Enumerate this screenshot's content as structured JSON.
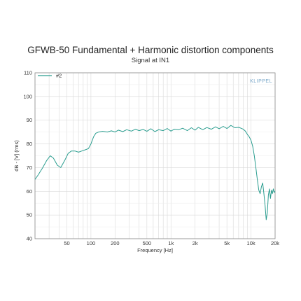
{
  "chart_data": {
    "type": "line",
    "title": "GFWB-50 Fundamental + Harmonic distortion components",
    "subtitle": "Signal at IN1",
    "xlabel": "Frequency [Hz]",
    "ylabel": "dB - [V] (rms)",
    "xscale": "log",
    "xlim": [
      20,
      20000
    ],
    "ylim": [
      40,
      110
    ],
    "x_tick_labels": [
      "50",
      "100",
      "200",
      "500",
      "1k",
      "2k",
      "5k",
      "10k",
      "20k"
    ],
    "x_ticks": [
      50,
      100,
      200,
      500,
      1000,
      2000,
      5000,
      10000,
      20000
    ],
    "y_ticks": [
      40,
      50,
      60,
      70,
      80,
      90,
      100,
      110
    ],
    "grid": true,
    "legend_position": "top-left",
    "watermark": "KLIPPEL",
    "series": [
      {
        "name": "#2",
        "color": "#2a9d8f",
        "x": [
          20,
          22,
          25,
          28,
          31,
          34,
          38,
          42,
          47,
          52,
          57,
          63,
          70,
          77,
          85,
          93,
          100,
          108,
          115,
          125,
          140,
          160,
          180,
          200,
          220,
          250,
          280,
          320,
          360,
          400,
          450,
          500,
          560,
          630,
          700,
          800,
          900,
          1000,
          1100,
          1250,
          1400,
          1600,
          1800,
          2000,
          2200,
          2500,
          2800,
          3200,
          3600,
          4000,
          4500,
          5000,
          5600,
          6300,
          7000,
          7500,
          8000,
          8500,
          9000,
          9500,
          10000,
          10500,
          11000,
          11500,
          12000,
          12500,
          13000,
          13500,
          14000,
          14500,
          15000,
          15500,
          16000,
          16500,
          17000,
          17500,
          18000,
          18500,
          19000,
          19500,
          20000
        ],
        "values": [
          65,
          67,
          70,
          73,
          75,
          74,
          71,
          70,
          73,
          76,
          77,
          77,
          76.5,
          77,
          77.5,
          78,
          80,
          83,
          84.5,
          85,
          85.3,
          85,
          85.5,
          85,
          85.8,
          85.2,
          86,
          85.4,
          86.2,
          85.6,
          86.1,
          85.3,
          86.4,
          85.2,
          86,
          85.6,
          86.5,
          85.4,
          86.2,
          86,
          86.6,
          85.6,
          86.8,
          85.8,
          87,
          86,
          86.9,
          86.2,
          87.2,
          86.4,
          87.4,
          86.5,
          87.8,
          86.8,
          87,
          86.6,
          86.2,
          85.4,
          84,
          83,
          81.5,
          79,
          75,
          70,
          65,
          60.5,
          59,
          62,
          63.5,
          59,
          54,
          48,
          51,
          58.5,
          61,
          57,
          60.5,
          59,
          61,
          59.5,
          60
        ]
      }
    ]
  }
}
